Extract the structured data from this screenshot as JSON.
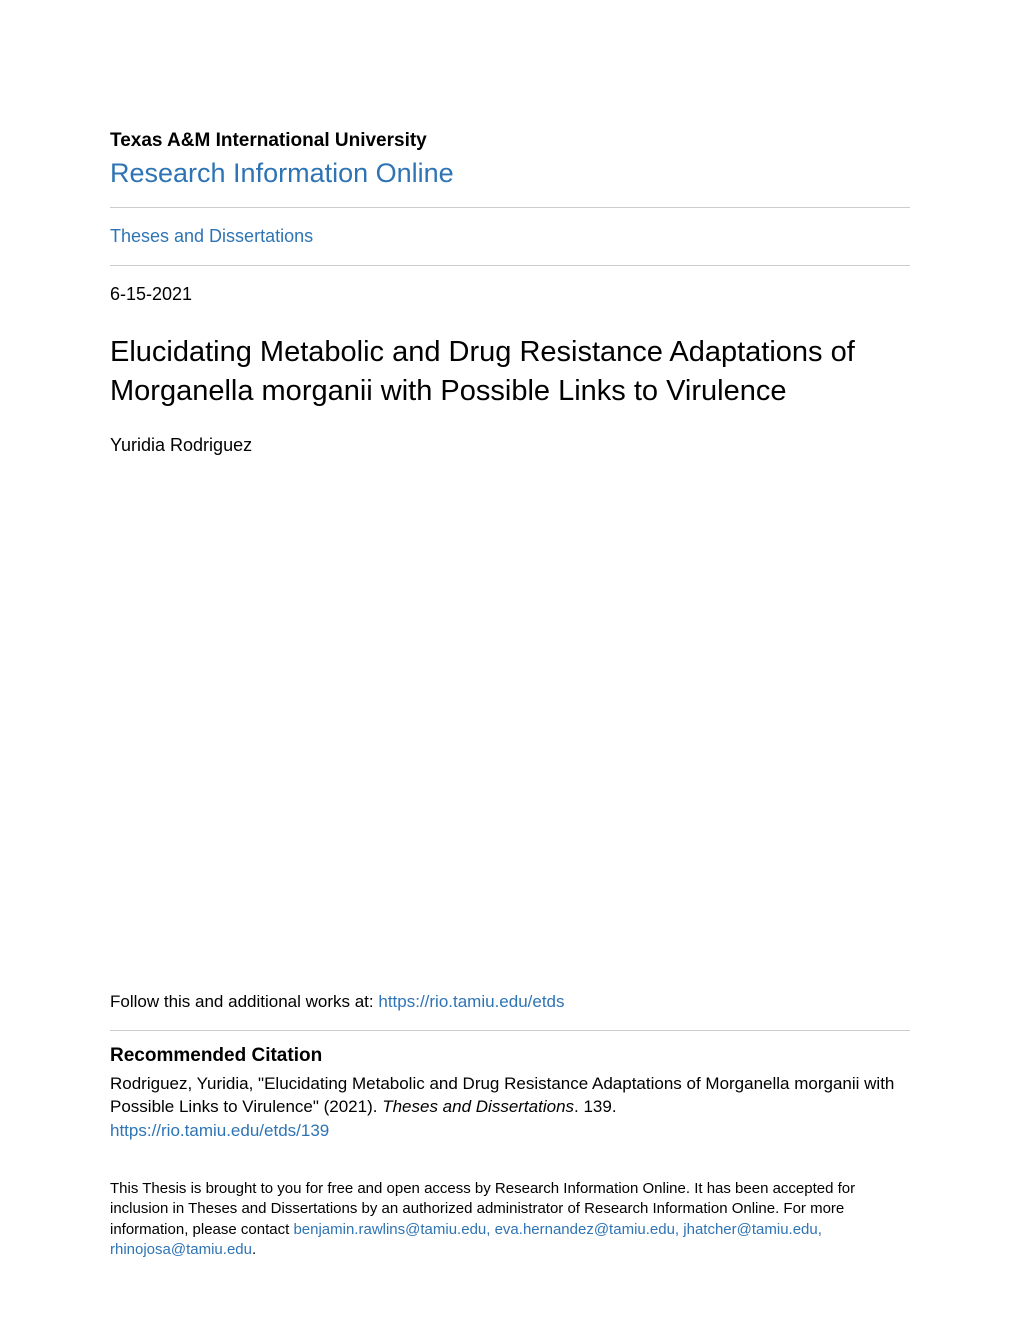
{
  "colors": {
    "link": "#2e74b5",
    "text": "#000000",
    "rule": "#cccccc",
    "background": "#ffffff"
  },
  "typography": {
    "font_family": "Arial, Helvetica, sans-serif",
    "institution_fontsize_pt": 14,
    "repo_link_fontsize_pt": 20,
    "collection_fontsize_pt": 13,
    "date_fontsize_pt": 13,
    "title_fontsize_pt": 22,
    "author_fontsize_pt": 13,
    "body_fontsize_pt": 12.5,
    "footer_fontsize_pt": 11
  },
  "header": {
    "institution": "Texas A&M International University",
    "repository_name": "Research Information Online",
    "collection": "Theses and Dissertations"
  },
  "record": {
    "date": "6-15-2021",
    "title": "Elucidating Metabolic and Drug Resistance Adaptations of Morganella morganii with Possible Links to Virulence",
    "author": "Yuridia Rodriguez"
  },
  "follow": {
    "prefix": "Follow this and additional works at: ",
    "url": "https://rio.tamiu.edu/etds"
  },
  "citation": {
    "heading": "Recommended Citation",
    "text_before_series": "Rodriguez, Yuridia, \"Elucidating Metabolic and Drug Resistance Adaptations of Morganella morganii with Possible Links to Virulence\" (2021). ",
    "series": "Theses and Dissertations",
    "text_after_series": ". 139.",
    "permalink": "https://rio.tamiu.edu/etds/139"
  },
  "footer": {
    "text_before_contacts": "This Thesis is brought to you for free and open access by Research Information Online. It has been accepted for inclusion in Theses and Dissertations by an authorized administrator of Research Information Online. For more information, please contact ",
    "contacts": "benjamin.rawlins@tamiu.edu, eva.hernandez@tamiu.edu, jhatcher@tamiu.edu, rhinojosa@tamiu.edu",
    "text_after_contacts": "."
  }
}
